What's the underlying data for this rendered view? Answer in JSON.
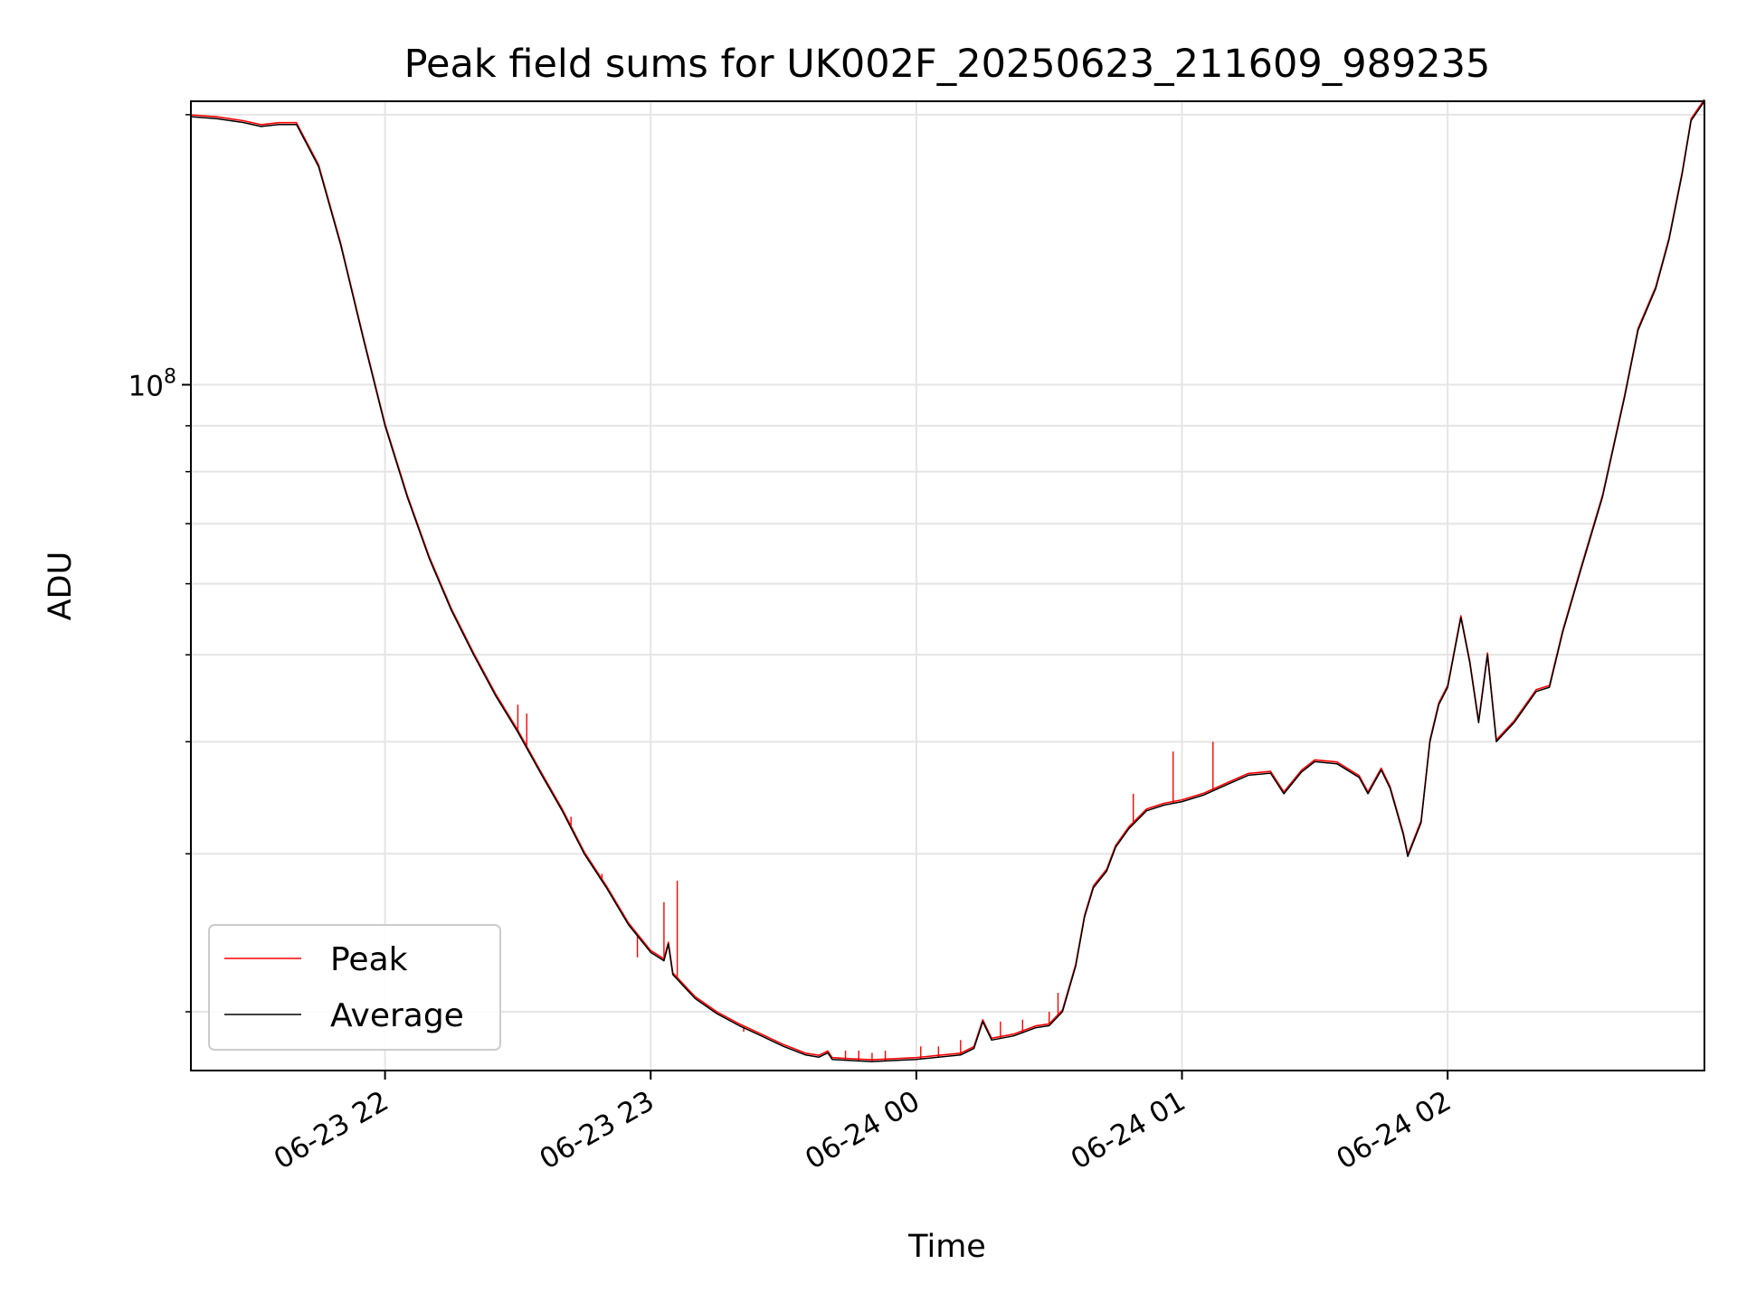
{
  "chart_data": {
    "type": "line",
    "title": "Peak field sums for UK002F_20250623_211609_989235",
    "xlabel": "Time",
    "ylabel": "ADU",
    "x_axis": {
      "type": "time",
      "range": [
        "2025-06-23 21:16:09",
        "2025-06-24 02:58:00"
      ],
      "ticks": [
        {
          "value": "2025-06-23 22:00",
          "label": "06-23 22"
        },
        {
          "value": "2025-06-23 23:00",
          "label": "06-23 23"
        },
        {
          "value": "2025-06-24 00:00",
          "label": "06-24 00"
        },
        {
          "value": "2025-06-24 01:00",
          "label": "06-24 01"
        },
        {
          "value": "2025-06-24 02:00",
          "label": "06-24 02"
        }
      ]
    },
    "y_axis": {
      "scale": "log",
      "range": [
        17200000,
        207000000
      ],
      "major_ticks": [
        {
          "value": 100000000,
          "label_base": "10",
          "label_exp": "8"
        }
      ],
      "minor_gridlines": [
        20000000,
        30000000,
        40000000,
        50000000,
        60000000,
        70000000,
        80000000,
        90000000,
        200000000
      ]
    },
    "grid": true,
    "legend_position": "lower-left",
    "series": [
      {
        "name": "Peak",
        "color": "#ff0000",
        "spikes": [
          [
            "2025-06-23 22:30",
            44000000
          ],
          [
            "2025-06-23 22:32",
            43000000
          ],
          [
            "2025-06-23 22:42",
            33000000
          ],
          [
            "2025-06-23 22:47",
            29000000
          ],
          [
            "2025-06-23 22:49",
            28500000
          ],
          [
            "2025-06-23 22:57",
            23000000
          ],
          [
            "2025-06-23 23:03",
            26500000
          ],
          [
            "2025-06-23 23:06",
            28000000
          ],
          [
            "2025-06-23 23:21",
            19000000
          ],
          [
            "2025-06-23 23:23",
            19000000
          ],
          [
            "2025-06-23 23:44",
            18100000
          ],
          [
            "2025-06-23 23:47",
            18100000
          ],
          [
            "2025-06-23 23:50",
            18000000
          ],
          [
            "2025-06-23 23:53",
            18100000
          ],
          [
            "2025-06-24 00:01",
            18300000
          ],
          [
            "2025-06-24 00:05",
            18300000
          ],
          [
            "2025-06-24 00:10",
            18600000
          ],
          [
            "2025-06-24 00:19",
            19500000
          ],
          [
            "2025-06-24 00:24",
            19600000
          ],
          [
            "2025-06-24 00:30",
            20000000
          ],
          [
            "2025-06-24 00:32",
            21000000
          ],
          [
            "2025-06-24 00:49",
            35000000
          ],
          [
            "2025-06-24 00:58",
            39000000
          ],
          [
            "2025-06-24 01:07",
            40000000
          ]
        ]
      },
      {
        "name": "Average",
        "color": "#000000",
        "points": [
          [
            "2025-06-23 21:16",
            199000000
          ],
          [
            "2025-06-23 21:22",
            198000000
          ],
          [
            "2025-06-23 21:28",
            196000000
          ],
          [
            "2025-06-23 21:32",
            194000000
          ],
          [
            "2025-06-23 21:36",
            195000000
          ],
          [
            "2025-06-23 21:40",
            195000000
          ],
          [
            "2025-06-23 21:45",
            175000000
          ],
          [
            "2025-06-23 21:50",
            143000000
          ],
          [
            "2025-06-23 21:55",
            113000000
          ],
          [
            "2025-06-23 22:00",
            90000000
          ],
          [
            "2025-06-23 22:05",
            75000000
          ],
          [
            "2025-06-23 22:10",
            64000000
          ],
          [
            "2025-06-23 22:15",
            56000000
          ],
          [
            "2025-06-23 22:20",
            50000000
          ],
          [
            "2025-06-23 22:25",
            45000000
          ],
          [
            "2025-06-23 22:30",
            41000000
          ],
          [
            "2025-06-23 22:35",
            37000000
          ],
          [
            "2025-06-23 22:40",
            33500000
          ],
          [
            "2025-06-23 22:45",
            30000000
          ],
          [
            "2025-06-23 22:50",
            27500000
          ],
          [
            "2025-06-23 22:55",
            25000000
          ],
          [
            "2025-06-23 23:00",
            23300000
          ],
          [
            "2025-06-23 23:03",
            22800000
          ],
          [
            "2025-06-23 23:04",
            23800000
          ],
          [
            "2025-06-23 23:05",
            22000000
          ],
          [
            "2025-06-23 23:10",
            20700000
          ],
          [
            "2025-06-23 23:15",
            19900000
          ],
          [
            "2025-06-23 23:20",
            19300000
          ],
          [
            "2025-06-23 23:25",
            18800000
          ],
          [
            "2025-06-23 23:30",
            18300000
          ],
          [
            "2025-06-23 23:35",
            17900000
          ],
          [
            "2025-06-23 23:38",
            17800000
          ],
          [
            "2025-06-23 23:40",
            18000000
          ],
          [
            "2025-06-23 23:41",
            17700000
          ],
          [
            "2025-06-23 23:45",
            17650000
          ],
          [
            "2025-06-23 23:50",
            17600000
          ],
          [
            "2025-06-23 23:55",
            17650000
          ],
          [
            "2025-06-24 00:00",
            17700000
          ],
          [
            "2025-06-24 00:05",
            17800000
          ],
          [
            "2025-06-24 00:10",
            17900000
          ],
          [
            "2025-06-24 00:13",
            18200000
          ],
          [
            "2025-06-24 00:15",
            19500000
          ],
          [
            "2025-06-24 00:17",
            18600000
          ],
          [
            "2025-06-24 00:22",
            18800000
          ],
          [
            "2025-06-24 00:27",
            19200000
          ],
          [
            "2025-06-24 00:30",
            19300000
          ],
          [
            "2025-06-24 00:33",
            20000000
          ],
          [
            "2025-06-24 00:36",
            22500000
          ],
          [
            "2025-06-24 00:38",
            25500000
          ],
          [
            "2025-06-24 00:40",
            27500000
          ],
          [
            "2025-06-24 00:43",
            28700000
          ],
          [
            "2025-06-24 00:45",
            30500000
          ],
          [
            "2025-06-24 00:48",
            32000000
          ],
          [
            "2025-06-24 00:52",
            33500000
          ],
          [
            "2025-06-24 00:56",
            34000000
          ],
          [
            "2025-06-24 01:00",
            34300000
          ],
          [
            "2025-06-24 01:05",
            34900000
          ],
          [
            "2025-06-24 01:10",
            35800000
          ],
          [
            "2025-06-24 01:15",
            36700000
          ],
          [
            "2025-06-24 01:20",
            36900000
          ],
          [
            "2025-06-24 01:23",
            35000000
          ],
          [
            "2025-06-24 01:27",
            37000000
          ],
          [
            "2025-06-24 01:30",
            38000000
          ],
          [
            "2025-06-24 01:35",
            37800000
          ],
          [
            "2025-06-24 01:40",
            36500000
          ],
          [
            "2025-06-24 01:42",
            35000000
          ],
          [
            "2025-06-24 01:45",
            37200000
          ],
          [
            "2025-06-24 01:47",
            35500000
          ],
          [
            "2025-06-24 01:50",
            31500000
          ],
          [
            "2025-06-24 01:51",
            29800000
          ],
          [
            "2025-06-24 01:54",
            32500000
          ],
          [
            "2025-06-24 01:56",
            40000000
          ],
          [
            "2025-06-24 01:58",
            44000000
          ],
          [
            "2025-06-24 02:00",
            46000000
          ],
          [
            "2025-06-24 02:03",
            55000000
          ],
          [
            "2025-06-24 02:05",
            49000000
          ],
          [
            "2025-06-24 02:07",
            42000000
          ],
          [
            "2025-06-24 02:09",
            50000000
          ],
          [
            "2025-06-24 02:11",
            40000000
          ],
          [
            "2025-06-24 02:15",
            42000000
          ],
          [
            "2025-06-24 02:20",
            45500000
          ],
          [
            "2025-06-24 02:23",
            46000000
          ],
          [
            "2025-06-24 02:26",
            53000000
          ],
          [
            "2025-06-24 02:30",
            62000000
          ],
          [
            "2025-06-24 02:35",
            75000000
          ],
          [
            "2025-06-24 02:40",
            97000000
          ],
          [
            "2025-06-24 02:43",
            115000000
          ],
          [
            "2025-06-24 02:47",
            128000000
          ],
          [
            "2025-06-24 02:50",
            145000000
          ],
          [
            "2025-06-24 02:53",
            172000000
          ],
          [
            "2025-06-24 02:55",
            197000000
          ],
          [
            "2025-06-24 02:58",
            207000000
          ]
        ]
      }
    ]
  }
}
